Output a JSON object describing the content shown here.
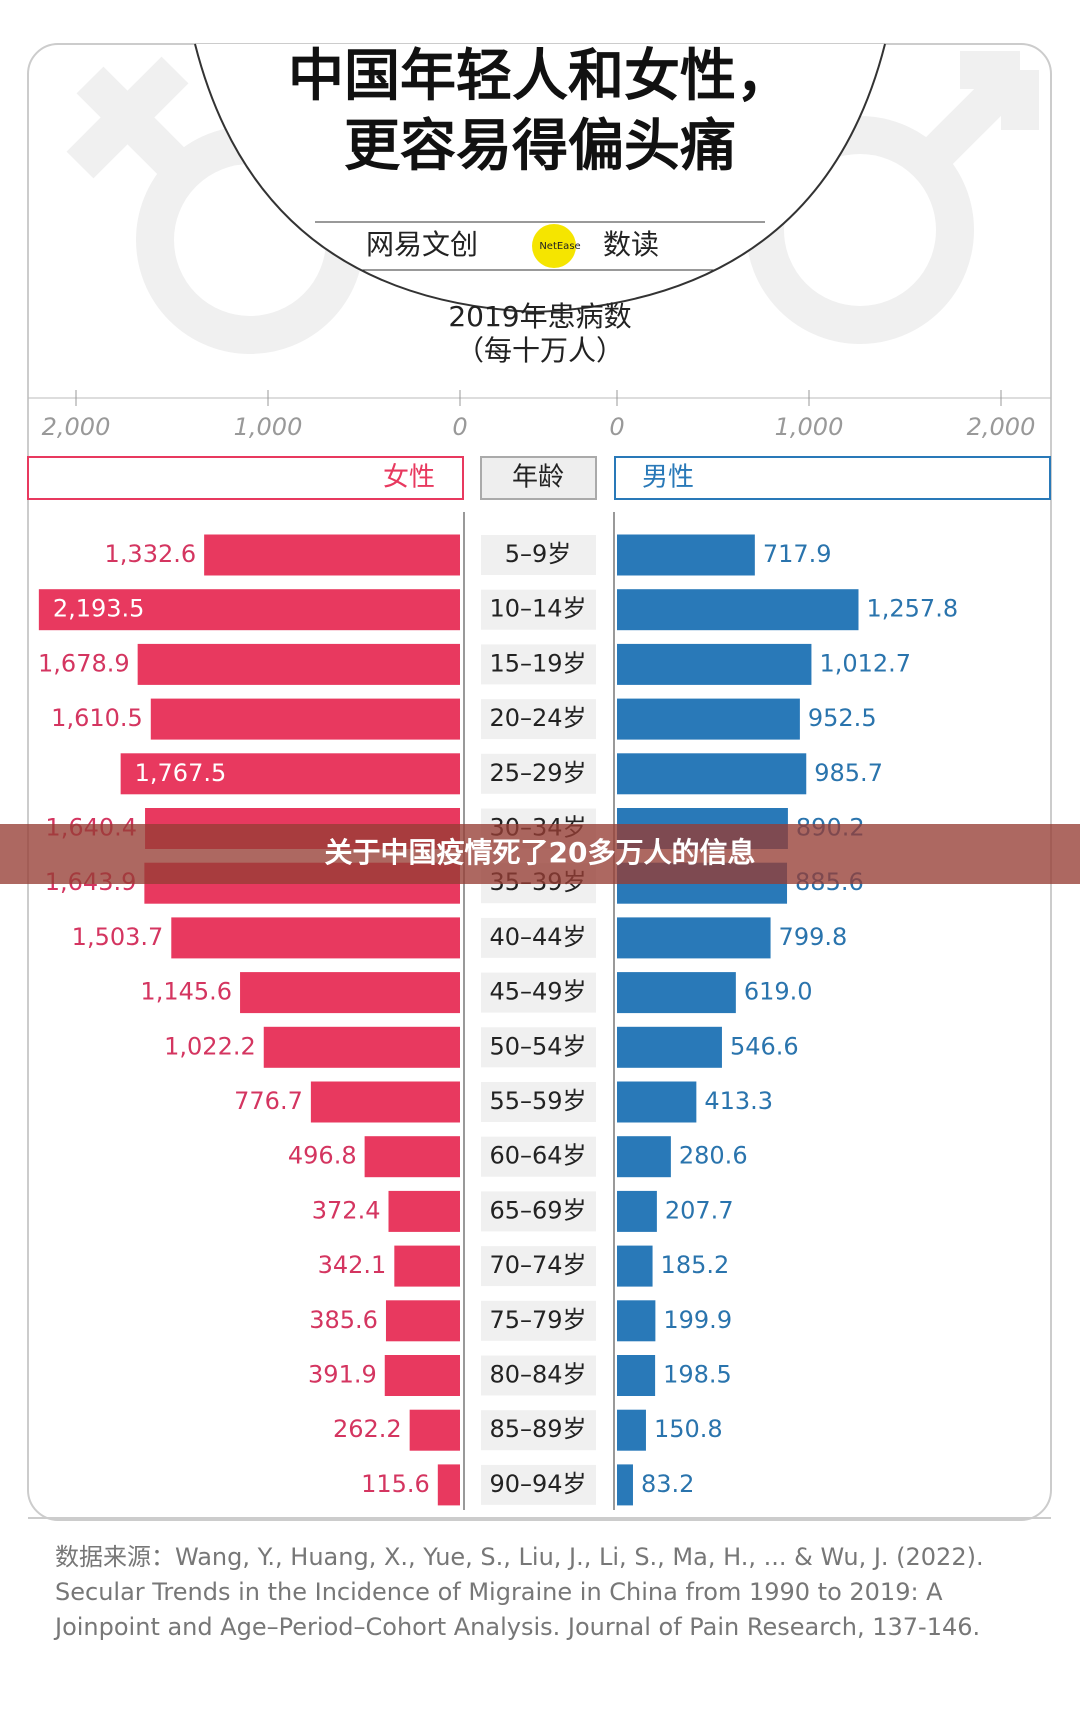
{
  "chart_data": {
    "type": "butterfly",
    "title": [
      "中国年轻人和女性，",
      "更容易得偏头痛"
    ],
    "brand": [
      "网易文创",
      "NetEase",
      "数读"
    ],
    "subtitle": [
      "2019年患病数",
      "（每十万人）"
    ],
    "category_label": "年龄",
    "categories": [
      "5–9岁",
      "10–14岁",
      "15–19岁",
      "20–24岁",
      "25–29岁",
      "30–34岁",
      "35–39岁",
      "40–44岁",
      "45–49岁",
      "50–54岁",
      "55–59岁",
      "60–64岁",
      "65–69岁",
      "70–74岁",
      "75–79岁",
      "80–84岁",
      "85–89岁",
      "90–94岁"
    ],
    "series": [
      {
        "name": "女性",
        "color": "#e8395f",
        "values": [
          1332.6,
          2193.5,
          1678.9,
          1610.5,
          1767.5,
          1640.4,
          1643.9,
          1503.7,
          1145.6,
          1022.2,
          776.7,
          496.8,
          372.4,
          342.1,
          385.6,
          391.9,
          262.2,
          115.6
        ],
        "value_labels": [
          "1,332.6",
          "2,193.5",
          "1,678.9",
          "1,610.5",
          "1,767.5",
          "1,640.4",
          "1,643.9",
          "1,503.7",
          "1,145.6",
          "1,022.2",
          "776.7",
          "496.8",
          "372.4",
          "342.1",
          "385.6",
          "391.9",
          "262.2",
          "115.6"
        ]
      },
      {
        "name": "男性",
        "color": "#2979b8",
        "values": [
          717.9,
          1257.8,
          1012.7,
          952.5,
          985.7,
          890.2,
          885.6,
          799.8,
          619.0,
          546.6,
          413.3,
          280.6,
          207.7,
          185.2,
          199.9,
          198.5,
          150.8,
          83.2
        ],
        "value_labels": [
          "717.9",
          "1,257.8",
          "1,012.7",
          "952.5",
          "985.7",
          "890.2",
          "885.6",
          "799.8",
          "619.0",
          "546.6",
          "413.3",
          "280.6",
          "207.7",
          "185.2",
          "199.9",
          "198.5",
          "150.8",
          "83.2"
        ]
      }
    ],
    "xlim": [
      0,
      2250
    ],
    "xticks": [
      {
        "value": 2000,
        "label": "2,000"
      },
      {
        "value": 1000,
        "label": "1,000"
      },
      0
    ],
    "source": [
      "数据来源：Wang, Y., Huang, X., Yue, S., Liu, J., Li, S., Ma, H., ... & Wu, J. (2022).",
      "Secular Trends in the Incidence of Migraine in China from 1990 to 2019: A",
      "Joinpoint and Age–Period–Cohort Analysis. Journal of Pain Research, 137-146."
    ],
    "banner": "关于中国疫情死了20多万人的信息"
  }
}
